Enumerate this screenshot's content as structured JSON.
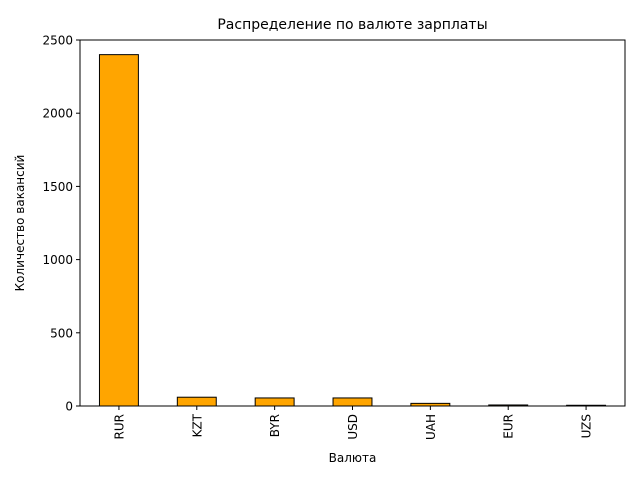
{
  "chart_data": {
    "type": "bar",
    "title": "Распределение по валюте зарплаты",
    "xlabel": "Валюта",
    "ylabel": "Количество вакансий",
    "categories": [
      "RUR",
      "KZT",
      "BYR",
      "USD",
      "UAH",
      "EUR",
      "UZS"
    ],
    "values": [
      2400,
      60,
      55,
      55,
      18,
      7,
      5
    ],
    "ylim": [
      0,
      2500
    ],
    "yticks": [
      0,
      500,
      1000,
      1500,
      2000,
      2500
    ],
    "grid": false,
    "legend": "none",
    "bar_color": "#FFA500",
    "edge_color": "#000000"
  }
}
